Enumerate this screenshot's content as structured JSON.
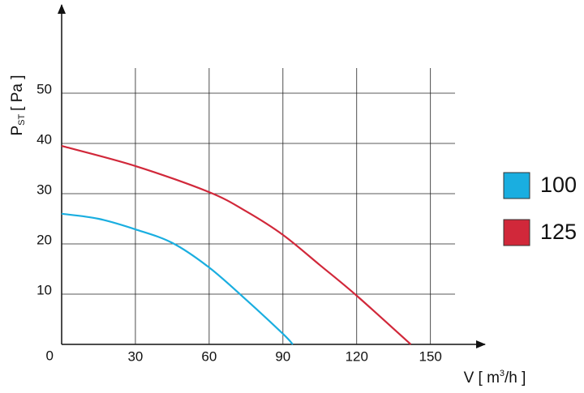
{
  "chart_data": {
    "type": "line",
    "y_label": {
      "main": "P",
      "sub": "ST",
      "unit": "[ Pa ]"
    },
    "x_label": {
      "main": "V [ m",
      "sup": "3",
      "unit": "/h ]"
    },
    "xlim": [
      0,
      160
    ],
    "ylim": [
      0,
      55
    ],
    "xticks": [
      30,
      60,
      90,
      120,
      150
    ],
    "yticks": [
      0,
      10,
      20,
      30,
      40,
      50
    ],
    "grid": true,
    "series": [
      {
        "name": "100",
        "color": "#1aaee0",
        "x": [
          0,
          15,
          30,
          45,
          60,
          75,
          90,
          94
        ],
        "values": [
          26,
          25,
          22.9,
          20.2,
          15.3,
          8.9,
          2.1,
          0
        ]
      },
      {
        "name": "125",
        "color": "#d1283a",
        "x": [
          0,
          30,
          60,
          75,
          90,
          105,
          120,
          142
        ],
        "values": [
          39.5,
          35.5,
          30.3,
          26.5,
          21.8,
          15.8,
          9.7,
          0
        ]
      }
    ]
  }
}
